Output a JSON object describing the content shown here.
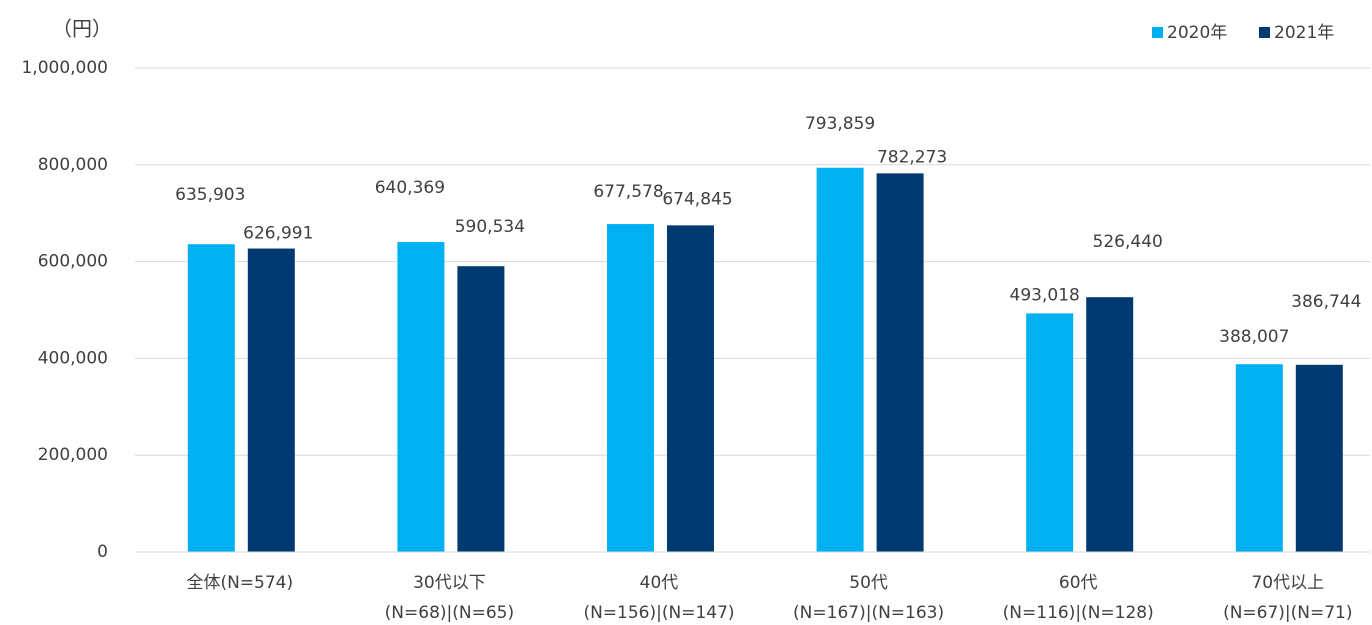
{
  "chart_data": {
    "type": "bar",
    "unit_label": "（円）",
    "categories": [
      [
        "全体(N=574)"
      ],
      [
        "30代以下",
        "(N=68)|(N=65)"
      ],
      [
        "40代",
        "(N=156)|(N=147)"
      ],
      [
        "50代",
        "(N=167)|(N=163)"
      ],
      [
        "60代",
        "(N=116)|(N=128)"
      ],
      [
        "70代以上",
        "(N=67)|(N=71)"
      ]
    ],
    "series": [
      {
        "name": "2020年",
        "color": "#00b0f0",
        "values": [
          635903,
          640369,
          677578,
          793859,
          493018,
          388007
        ],
        "value_labels": [
          "635,903",
          "640,369",
          "677,578",
          "793,859",
          "493,018",
          "388,007"
        ]
      },
      {
        "name": "2021年",
        "color": "#003a70",
        "values": [
          626991,
          590534,
          674845,
          782273,
          526440,
          386744
        ],
        "value_labels": [
          "626,991",
          "590,534",
          "674,845",
          "782,273",
          "526,440",
          "386,744"
        ]
      }
    ],
    "ylim": [
      0,
      1000000
    ],
    "yticks": [
      0,
      {
        "value": 200000,
        "label": "200,000"
      },
      {
        "value": 400000,
        "label": "400,000"
      },
      {
        "value": 600000,
        "label": "600,000"
      },
      {
        "value": 800000,
        "label": "800,000"
      },
      {
        "value": 1000000,
        "label": "1,000,000"
      }
    ],
    "grid": true,
    "legend": "top-right"
  }
}
